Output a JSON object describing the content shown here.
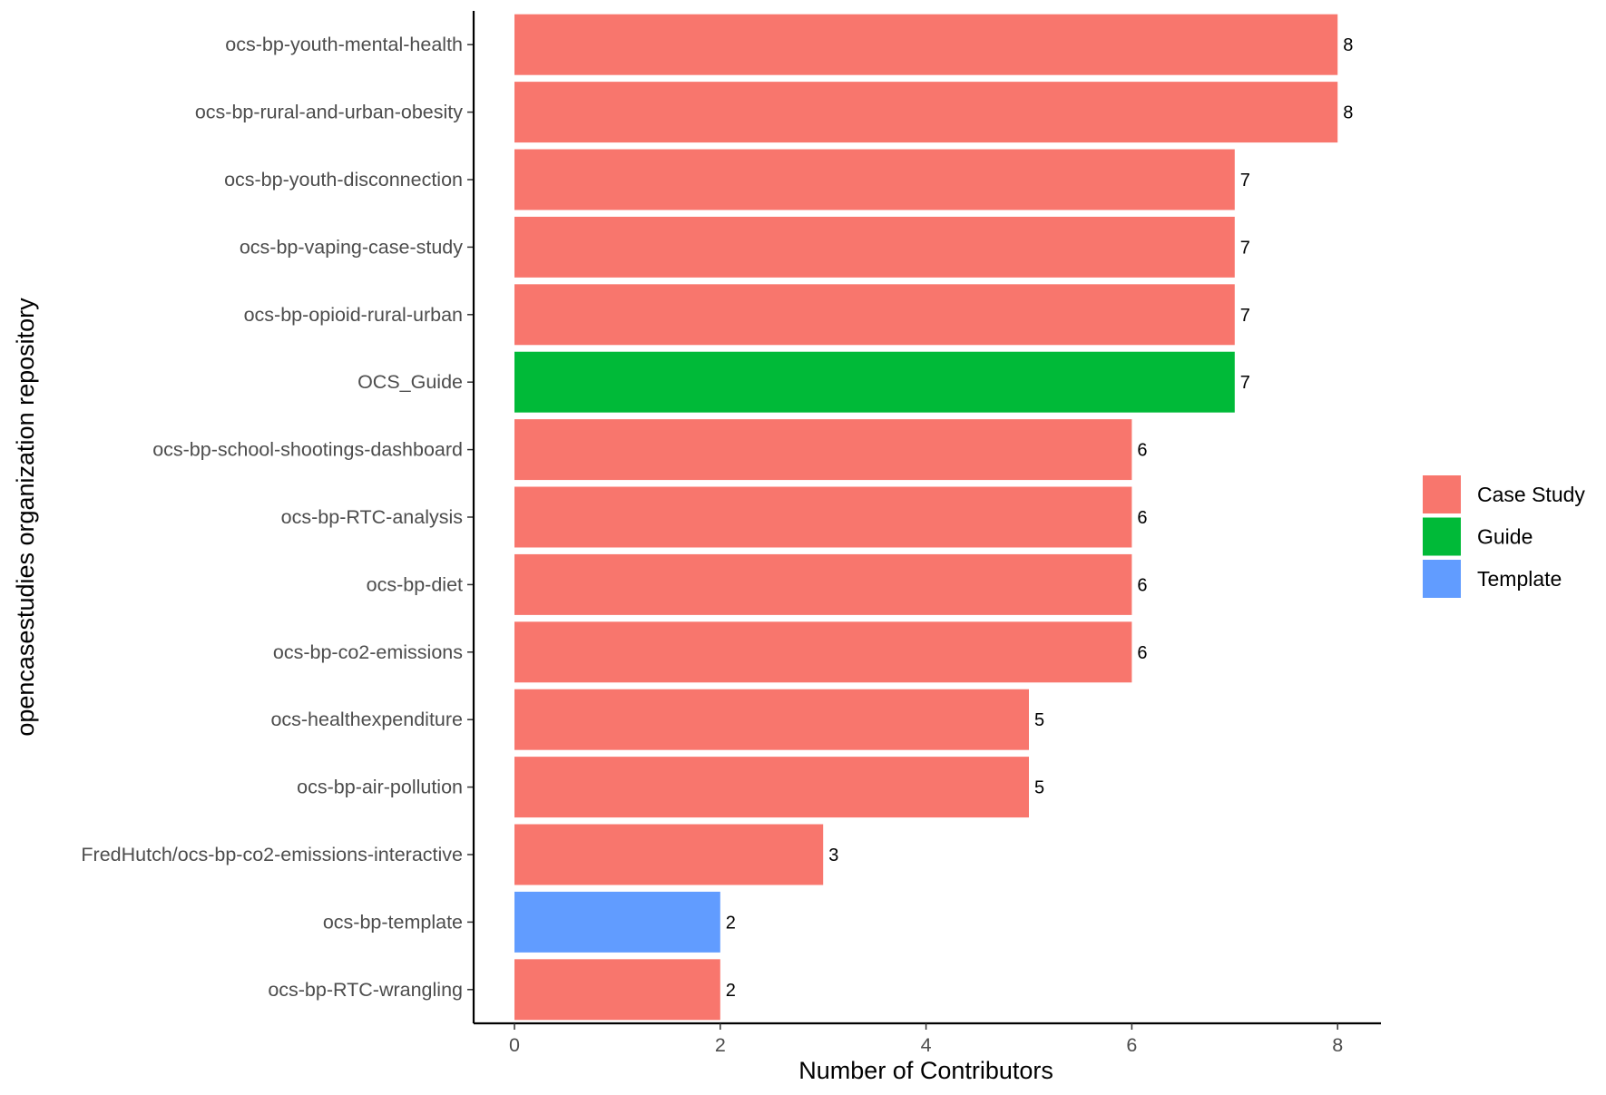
{
  "chart_data": {
    "type": "bar",
    "orientation": "horizontal",
    "xlabel": "Number of Contributors",
    "ylabel": "opencasestudies organization repository",
    "xlim": [
      0,
      8.8
    ],
    "x_ticks": [
      0,
      2,
      4,
      6,
      8
    ],
    "grid": false,
    "legend_position": "right",
    "categories": [
      "ocs-bp-youth-mental-health",
      "ocs-bp-rural-and-urban-obesity",
      "ocs-bp-youth-disconnection",
      "ocs-bp-vaping-case-study",
      "ocs-bp-opioid-rural-urban",
      "OCS_Guide",
      "ocs-bp-school-shootings-dashboard",
      "ocs-bp-RTC-analysis",
      "ocs-bp-diet",
      "ocs-bp-co2-emissions",
      "ocs-healthexpenditure",
      "ocs-bp-air-pollution",
      "FredHutch/ocs-bp-co2-emissions-interactive",
      "ocs-bp-template",
      "ocs-bp-RTC-wrangling"
    ],
    "values": [
      8,
      8,
      7,
      7,
      7,
      7,
      6,
      6,
      6,
      6,
      5,
      5,
      3,
      2,
      2
    ],
    "groups": [
      "Case Study",
      "Case Study",
      "Case Study",
      "Case Study",
      "Case Study",
      "Guide",
      "Case Study",
      "Case Study",
      "Case Study",
      "Case Study",
      "Case Study",
      "Case Study",
      "Case Study",
      "Template",
      "Case Study"
    ],
    "legend": [
      {
        "name": "Case Study",
        "color": "#F8766D"
      },
      {
        "name": "Guide",
        "color": "#00BA38"
      },
      {
        "name": "Template",
        "color": "#619CFF"
      }
    ]
  }
}
